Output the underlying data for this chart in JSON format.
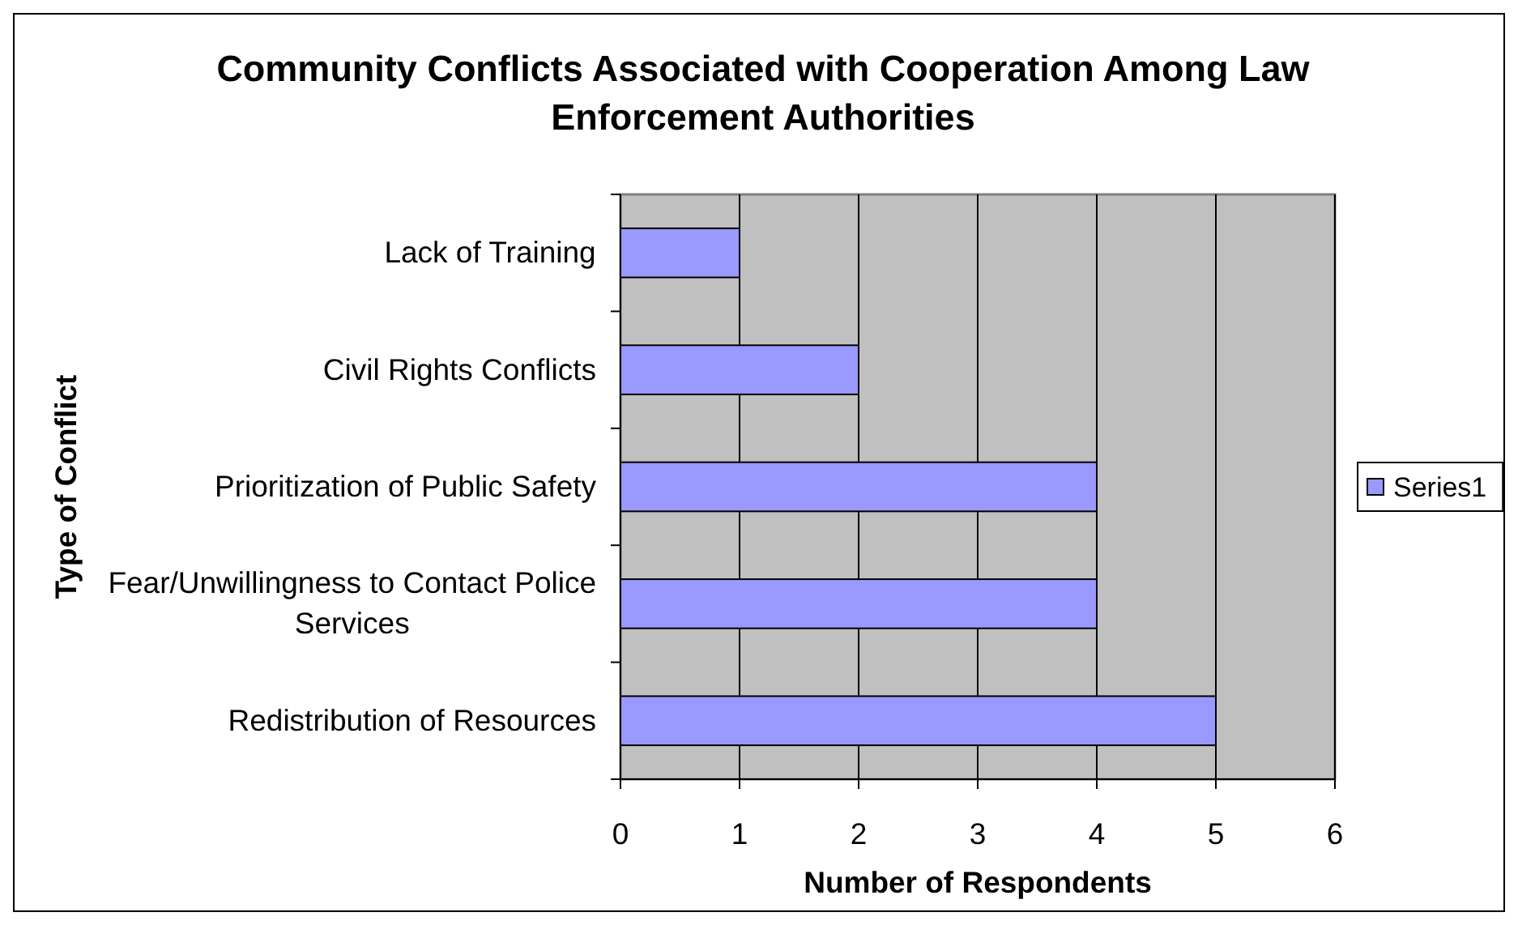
{
  "chart_data": {
    "type": "bar",
    "orientation": "horizontal",
    "title": "Community Conflicts Associated with Cooperation Among Law Enforcement Authorities",
    "xlabel": "Number of Respondents",
    "ylabel": "Type of Conflict",
    "categories": [
      "Lack of Training",
      "Civil Rights Conflicts",
      "Prioritization of Public Safety",
      "Fear/Unwillingness to Contact Police Services",
      "Redistribution of Resources"
    ],
    "series": [
      {
        "name": "Series1",
        "color": "#9999ff",
        "values": [
          1,
          2,
          4,
          4,
          5
        ]
      }
    ],
    "xlim": [
      0,
      6
    ],
    "xticks": [
      0,
      1,
      2,
      3,
      4,
      5,
      6
    ],
    "grid": "x",
    "legend": "right"
  }
}
